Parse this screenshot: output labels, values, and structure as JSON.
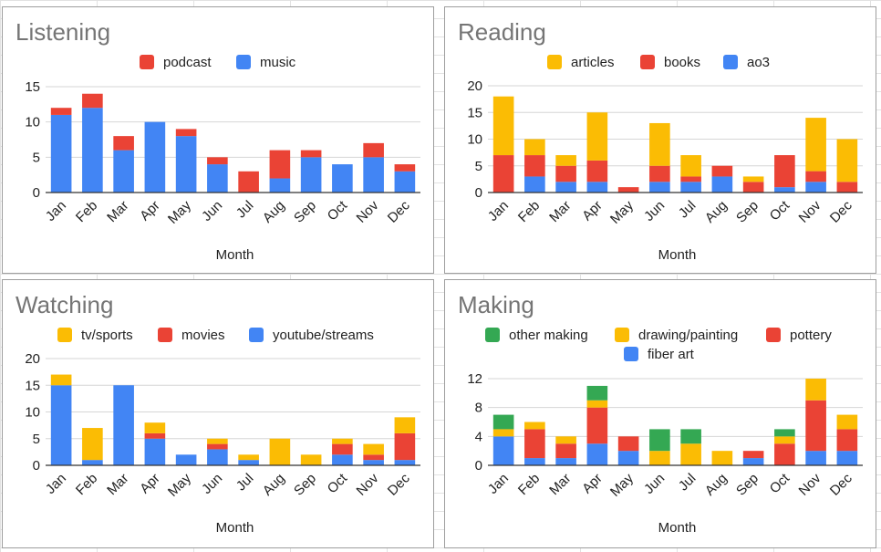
{
  "chart_data": [
    {
      "id": "listening",
      "type": "bar",
      "stacked": true,
      "title": "Listening",
      "xlabel": "Month",
      "ylabel": "",
      "ylim": [
        0,
        15
      ],
      "yticks": [
        0,
        5,
        10,
        15
      ],
      "categories": [
        "Jan",
        "Feb",
        "Mar",
        "Apr",
        "May",
        "Jun",
        "Jul",
        "Aug",
        "Sep",
        "Oct",
        "Nov",
        "Dec"
      ],
      "legend": "top",
      "series": [
        {
          "name": "music",
          "color": "#4285f4",
          "values": [
            11,
            12,
            6,
            10,
            8,
            4,
            0,
            2,
            5,
            4,
            5,
            3
          ]
        },
        {
          "name": "podcast",
          "color": "#ea4335",
          "values": [
            1,
            2,
            2,
            0,
            1,
            1,
            3,
            4,
            1,
            0,
            2,
            1
          ]
        }
      ],
      "legend_order": [
        "podcast",
        "music"
      ]
    },
    {
      "id": "reading",
      "type": "bar",
      "stacked": true,
      "title": "Reading",
      "xlabel": "Month",
      "ylabel": "",
      "ylim": [
        0,
        20
      ],
      "yticks": [
        0,
        5,
        10,
        15,
        20
      ],
      "categories": [
        "Jan",
        "Feb",
        "Mar",
        "Apr",
        "May",
        "Jun",
        "Jul",
        "Aug",
        "Sep",
        "Oct",
        "Nov",
        "Dec"
      ],
      "legend": "top",
      "series": [
        {
          "name": "ao3",
          "color": "#4285f4",
          "values": [
            0,
            3,
            2,
            2,
            0,
            2,
            2,
            3,
            0,
            1,
            2,
            0
          ]
        },
        {
          "name": "books",
          "color": "#ea4335",
          "values": [
            7,
            4,
            3,
            4,
            1,
            3,
            1,
            2,
            2,
            6,
            2,
            2
          ]
        },
        {
          "name": "articles",
          "color": "#fbbc04",
          "values": [
            11,
            3,
            2,
            9,
            0,
            8,
            4,
            0,
            1,
            0,
            10,
            8
          ]
        }
      ],
      "legend_order": [
        "articles",
        "books",
        "ao3"
      ]
    },
    {
      "id": "watching",
      "type": "bar",
      "stacked": true,
      "title": "Watching",
      "xlabel": "Month",
      "ylabel": "",
      "ylim": [
        0,
        20
      ],
      "yticks": [
        0,
        5,
        10,
        15,
        20
      ],
      "categories": [
        "Jan",
        "Feb",
        "Mar",
        "Apr",
        "May",
        "Jun",
        "Jul",
        "Aug",
        "Sep",
        "Oct",
        "Nov",
        "Dec"
      ],
      "legend": "top",
      "series": [
        {
          "name": "youtube/streams",
          "color": "#4285f4",
          "values": [
            15,
            1,
            15,
            5,
            2,
            3,
            1,
            0,
            0,
            2,
            1,
            1
          ]
        },
        {
          "name": "movies",
          "color": "#ea4335",
          "values": [
            0,
            0,
            0,
            1,
            0,
            1,
            0,
            0,
            0,
            2,
            1,
            5
          ]
        },
        {
          "name": "tv/sports",
          "color": "#fbbc04",
          "values": [
            2,
            6,
            0,
            2,
            0,
            1,
            1,
            5,
            2,
            1,
            2,
            3
          ]
        }
      ],
      "legend_order": [
        "tv/sports",
        "movies",
        "youtube/streams"
      ]
    },
    {
      "id": "making",
      "type": "bar",
      "stacked": true,
      "title": "Making",
      "xlabel": "Month",
      "ylabel": "",
      "ylim": [
        0,
        12
      ],
      "yticks": [
        0,
        4,
        8,
        12
      ],
      "categories": [
        "Jan",
        "Feb",
        "Mar",
        "Apr",
        "May",
        "Jun",
        "Jul",
        "Aug",
        "Sep",
        "Oct",
        "Nov",
        "Dec"
      ],
      "legend": "top",
      "series": [
        {
          "name": "fiber art",
          "color": "#4285f4",
          "values": [
            4,
            1,
            1,
            3,
            2,
            0,
            0,
            0,
            1,
            0,
            2,
            2
          ]
        },
        {
          "name": "pottery",
          "color": "#ea4335",
          "values": [
            0,
            4,
            2,
            5,
            2,
            0,
            0,
            0,
            1,
            3,
            7,
            3
          ]
        },
        {
          "name": "drawing/painting",
          "color": "#fbbc04",
          "values": [
            1,
            1,
            1,
            1,
            0,
            2,
            3,
            2,
            0,
            1,
            3,
            2
          ]
        },
        {
          "name": "other making",
          "color": "#34a853",
          "values": [
            2,
            0,
            0,
            2,
            0,
            3,
            2,
            0,
            0,
            1,
            0,
            0
          ]
        }
      ],
      "legend_order": [
        "other making",
        "drawing/painting",
        "pottery",
        "fiber art"
      ]
    }
  ]
}
